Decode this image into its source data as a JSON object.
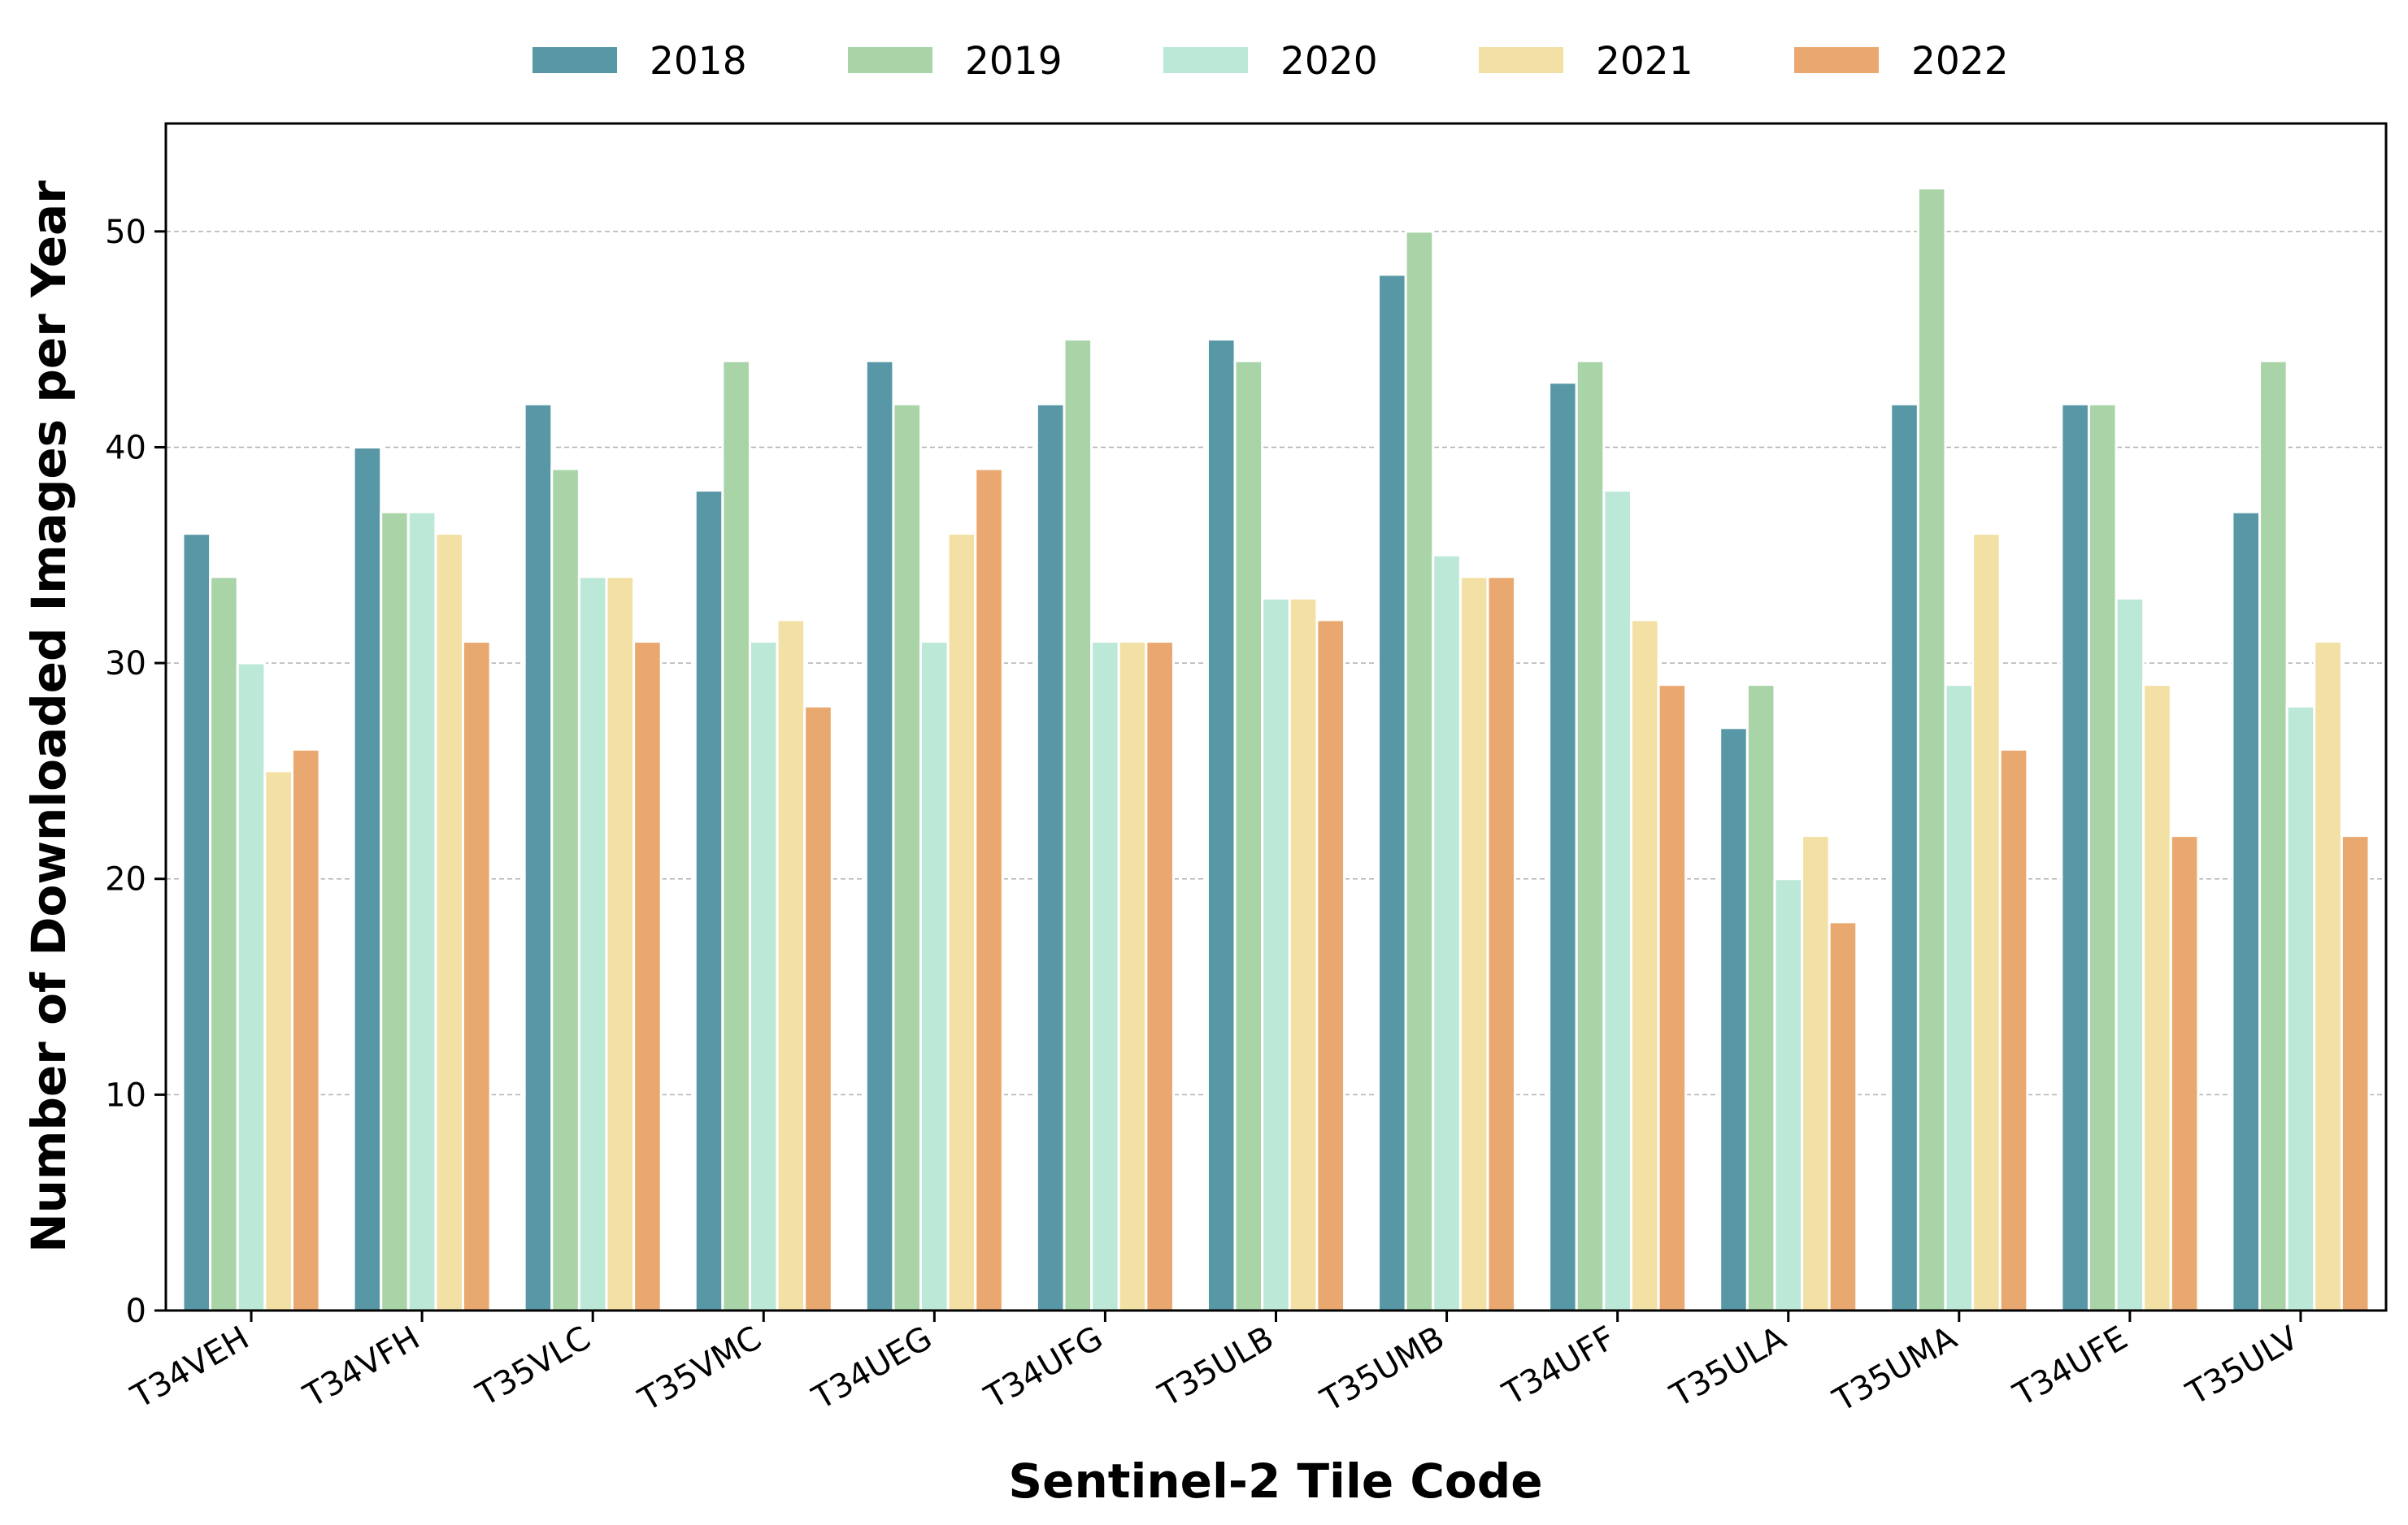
{
  "chart_data": {
    "type": "bar",
    "title": "",
    "xlabel": "Sentinel-2 Tile Code",
    "ylabel": "Number of Downloaded Images per Year",
    "ylim": [
      0,
      55
    ],
    "yticks": [
      "0",
      "10",
      "20",
      "30",
      "40",
      "50"
    ],
    "grid": "horizontal dashed",
    "legend_position": "top-center",
    "categories": [
      "T34VEH",
      "T34VFH",
      "T35VLC",
      "T35VMC",
      "T34UEG",
      "T34UFG",
      "T35ULB",
      "T35UMB",
      "T34UFF",
      "T35ULA",
      "T35UMA",
      "T34UFE",
      "T35ULV"
    ],
    "series": [
      {
        "name": "2018",
        "color": "#5897A6",
        "values": [
          36,
          40,
          42,
          38,
          44,
          42,
          45,
          48,
          43,
          27,
          42,
          42,
          37
        ]
      },
      {
        "name": "2019",
        "color": "#A8D4A8",
        "values": [
          34,
          37,
          39,
          44,
          42,
          45,
          44,
          50,
          44,
          29,
          52,
          42,
          44
        ]
      },
      {
        "name": "2020",
        "color": "#BCE8D8",
        "values": [
          30,
          37,
          34,
          31,
          31,
          31,
          33,
          35,
          38,
          20,
          29,
          33,
          28
        ]
      },
      {
        "name": "2021",
        "color": "#F2E0A4",
        "values": [
          25,
          36,
          34,
          32,
          36,
          31,
          33,
          34,
          32,
          22,
          36,
          29,
          31
        ]
      },
      {
        "name": "2022",
        "color": "#E9A870",
        "values": [
          26,
          31,
          31,
          28,
          39,
          31,
          32,
          34,
          29,
          18,
          26,
          22,
          22
        ]
      }
    ]
  }
}
